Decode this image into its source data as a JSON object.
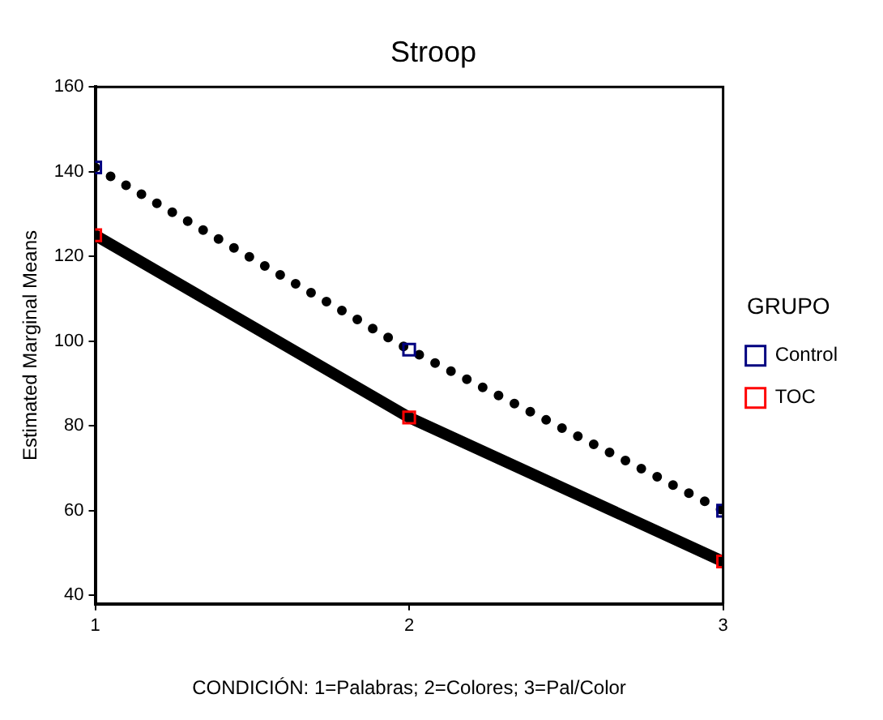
{
  "chart_data": {
    "type": "line",
    "title": "Stroop",
    "xlabel": "CONDICIÓN: 1=Palabras; 2=Colores; 3=Pal/Color",
    "ylabel": "Estimated Marginal Means",
    "legend_title": "GRUPO",
    "x": [
      1,
      2,
      3
    ],
    "xlim": [
      1,
      3
    ],
    "xticks": [
      1,
      2,
      3
    ],
    "ylim": [
      38,
      160
    ],
    "yticks": [
      40,
      60,
      80,
      100,
      120,
      140,
      160
    ],
    "grid": false,
    "legend": "right",
    "marker": "square",
    "series": [
      {
        "name": "Control",
        "color": "#000080",
        "line_style": "dotted",
        "values": [
          141,
          98,
          60
        ]
      },
      {
        "name": "TOC",
        "color": "#ff0000",
        "line_style": "solid",
        "values": [
          125,
          82,
          48
        ]
      }
    ]
  }
}
